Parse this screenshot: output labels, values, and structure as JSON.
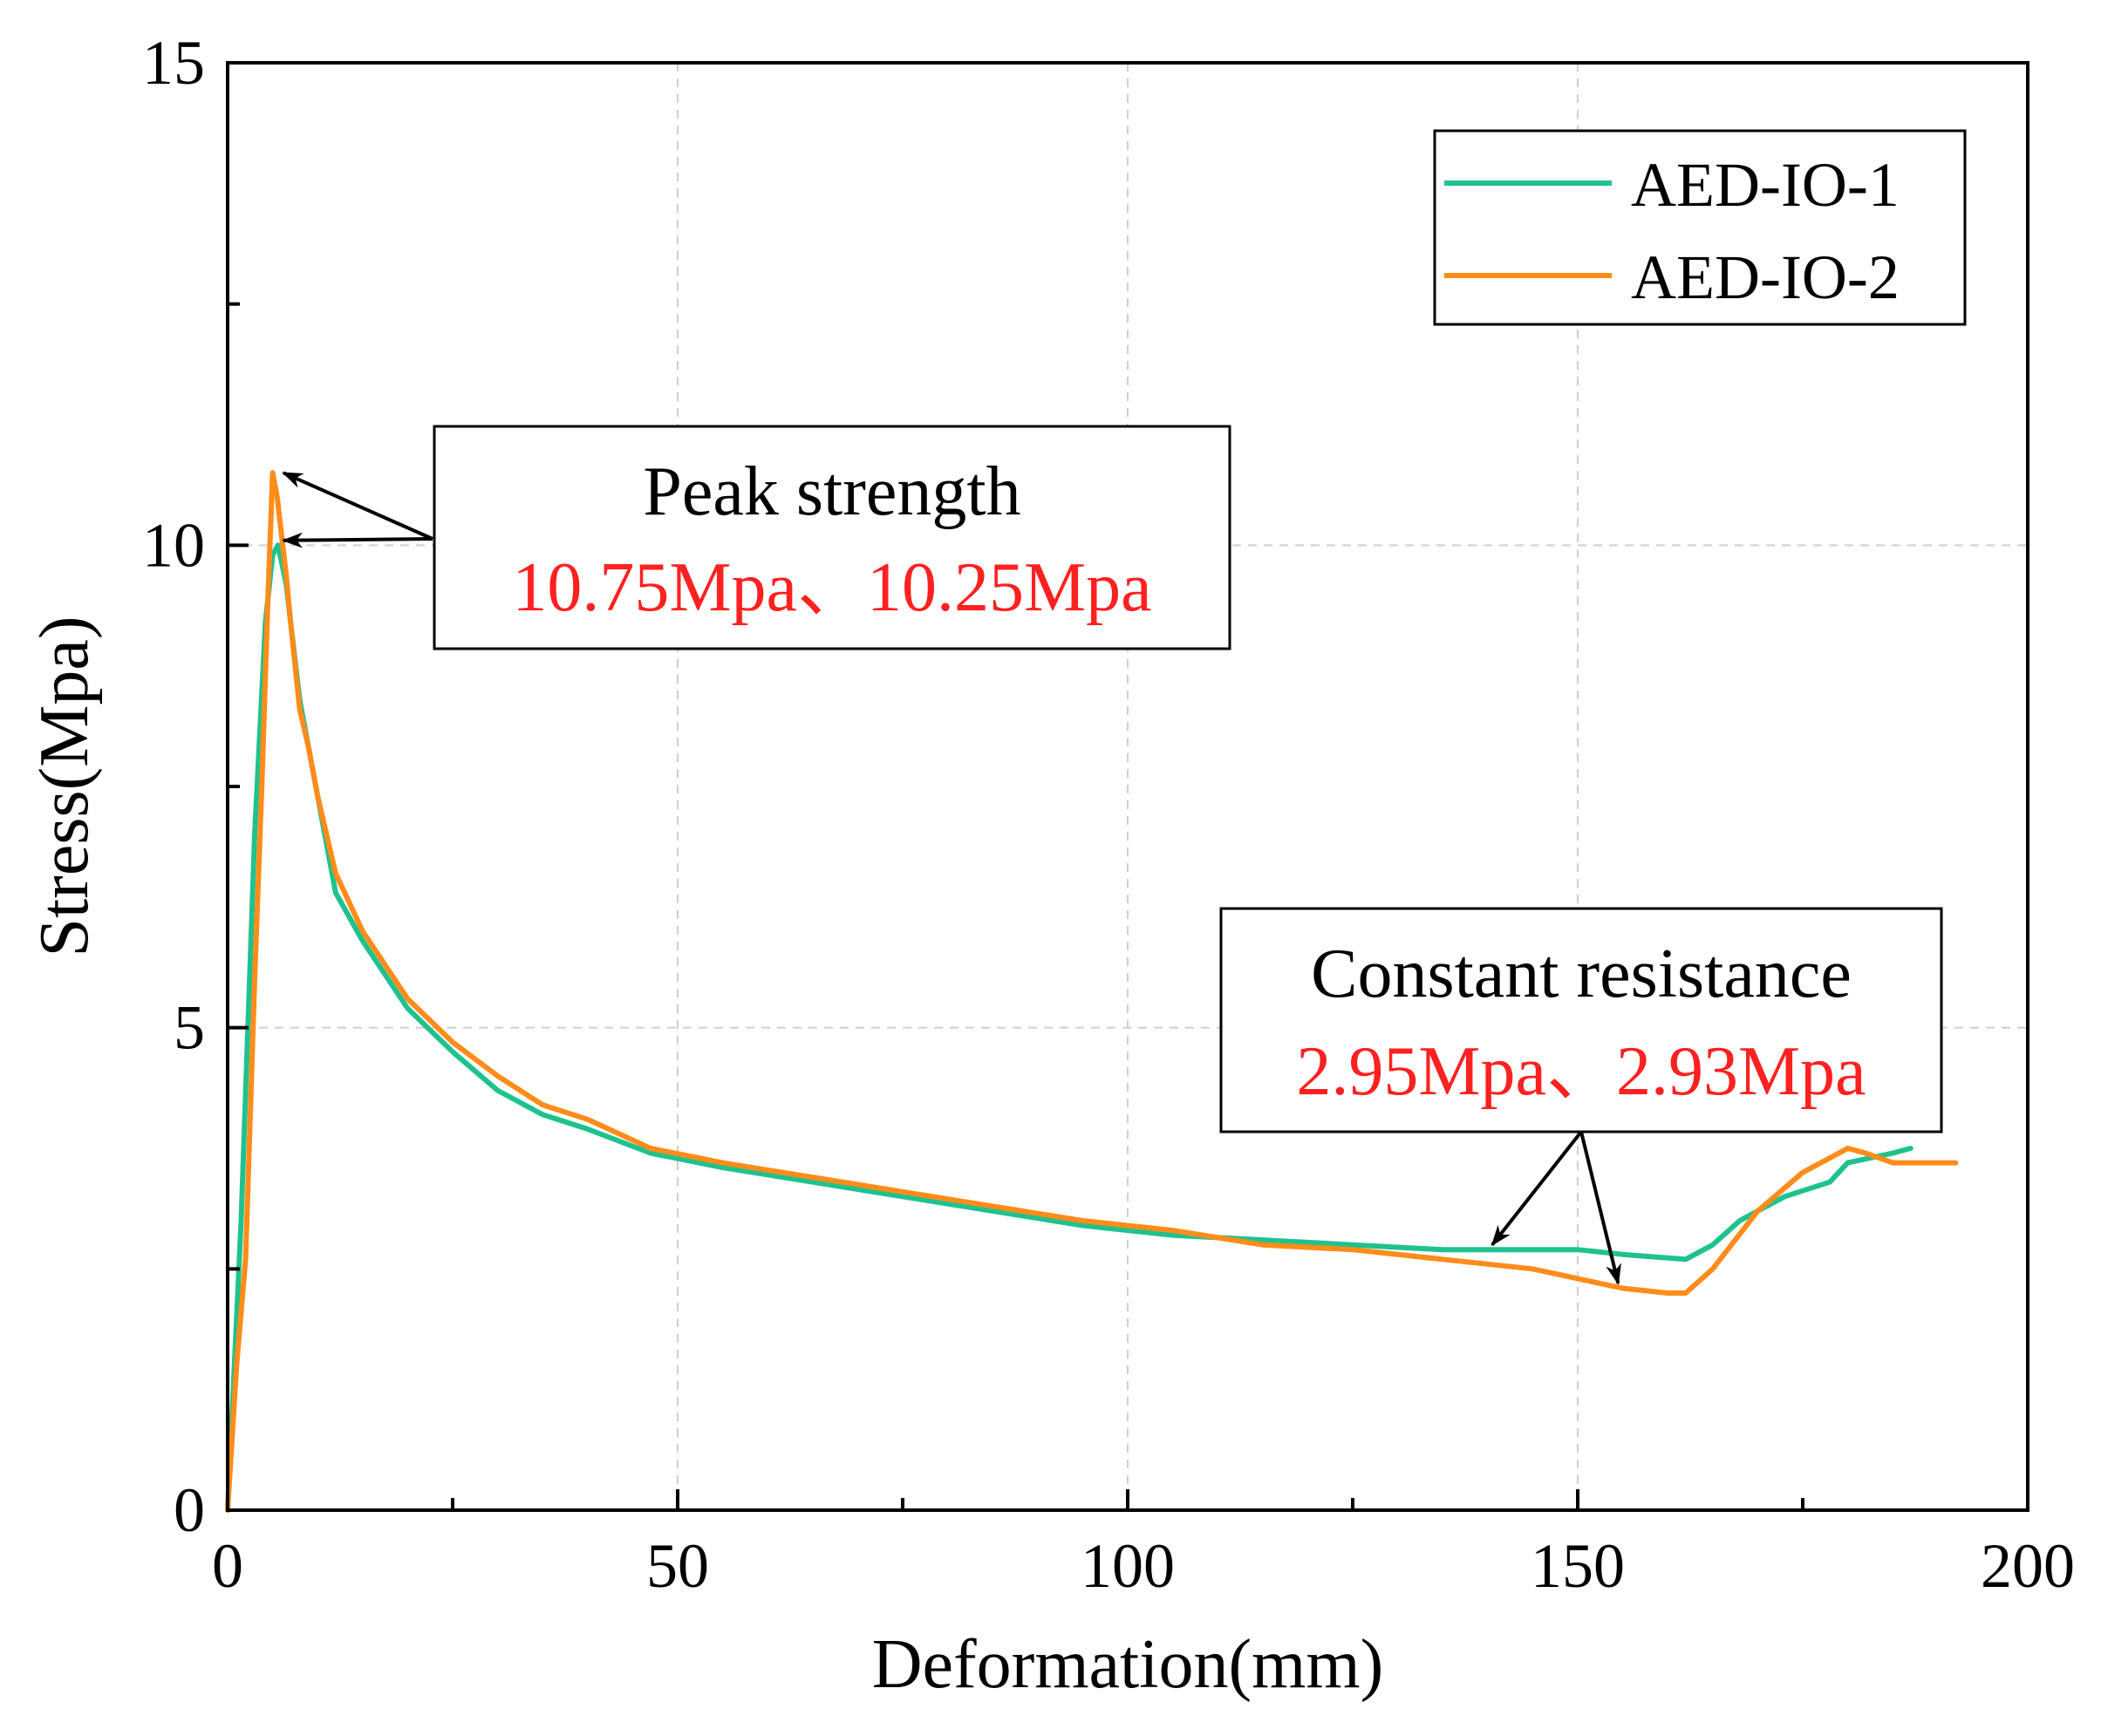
{
  "colors": {
    "series1": "#1fc28f",
    "series2": "#ff8c1a",
    "annotation_value": "#ff2020",
    "axis": "#000000",
    "grid": "#cfcfcf"
  },
  "chart_data": {
    "type": "line",
    "title": "",
    "xlabel": "Deformation(mm)",
    "ylabel": "Stress(Mpa)",
    "xlim": [
      0,
      200
    ],
    "ylim": [
      0,
      15
    ],
    "xticks": [
      0,
      50,
      100,
      150,
      200
    ],
    "yticks": [
      0,
      5,
      10,
      15
    ],
    "x_minor_step": 25,
    "y_minor_step": 2.5,
    "grid": true,
    "legend_position": "top-right",
    "series": [
      {
        "name": "AED-IO-1",
        "x": [
          0,
          1.5,
          3,
          4.2,
          5,
          5.6,
          6.5,
          8,
          10,
          12,
          15,
          20,
          25,
          30,
          35,
          40,
          47,
          55,
          65,
          75,
          85,
          95,
          105,
          115,
          125,
          135,
          145,
          150,
          155,
          162,
          165,
          168,
          170,
          173,
          178,
          180,
          185,
          187
        ],
        "y": [
          0,
          3,
          7,
          9.2,
          9.9,
          10.0,
          9.6,
          8.4,
          7.4,
          6.4,
          5.9,
          5.2,
          4.75,
          4.35,
          4.1,
          3.95,
          3.7,
          3.55,
          3.4,
          3.25,
          3.1,
          2.95,
          2.85,
          2.8,
          2.75,
          2.7,
          2.7,
          2.7,
          2.65,
          2.6,
          2.75,
          3.0,
          3.1,
          3.25,
          3.4,
          3.6,
          3.7,
          3.75
        ]
      },
      {
        "name": "AED-IO-2",
        "x": [
          0,
          1,
          2,
          3,
          3.8,
          4.5,
          5,
          5.5,
          6,
          6.5,
          7,
          8,
          9,
          10,
          12,
          15,
          20,
          25,
          30,
          35,
          40,
          47,
          55,
          65,
          75,
          85,
          95,
          105,
          115,
          125,
          135,
          145,
          150,
          155,
          160,
          162,
          165,
          170,
          175,
          178,
          180,
          182,
          185,
          192
        ],
        "y": [
          0,
          1.5,
          2.6,
          5.5,
          7.5,
          9.5,
          10.75,
          10.5,
          10.1,
          9.7,
          9.2,
          8.3,
          7.9,
          7.4,
          6.6,
          6.0,
          5.3,
          4.85,
          4.5,
          4.2,
          4.05,
          3.75,
          3.6,
          3.45,
          3.3,
          3.15,
          3.0,
          2.9,
          2.75,
          2.7,
          2.6,
          2.5,
          2.4,
          2.3,
          2.25,
          2.25,
          2.5,
          3.1,
          3.5,
          3.65,
          3.75,
          3.7,
          3.6,
          3.6
        ]
      }
    ],
    "annotations": [
      {
        "title": "Peak strength",
        "values": "10.75Mpa、10.25Mpa",
        "arrow_targets": [
          [
            6.2,
            10.75
          ],
          [
            6.2,
            10.05
          ]
        ]
      },
      {
        "title": "Constant resistance",
        "values": "2.95Mpa、2.93Mpa",
        "arrow_targets": [
          [
            140.5,
            2.75
          ],
          [
            154.5,
            2.35
          ]
        ]
      }
    ]
  }
}
